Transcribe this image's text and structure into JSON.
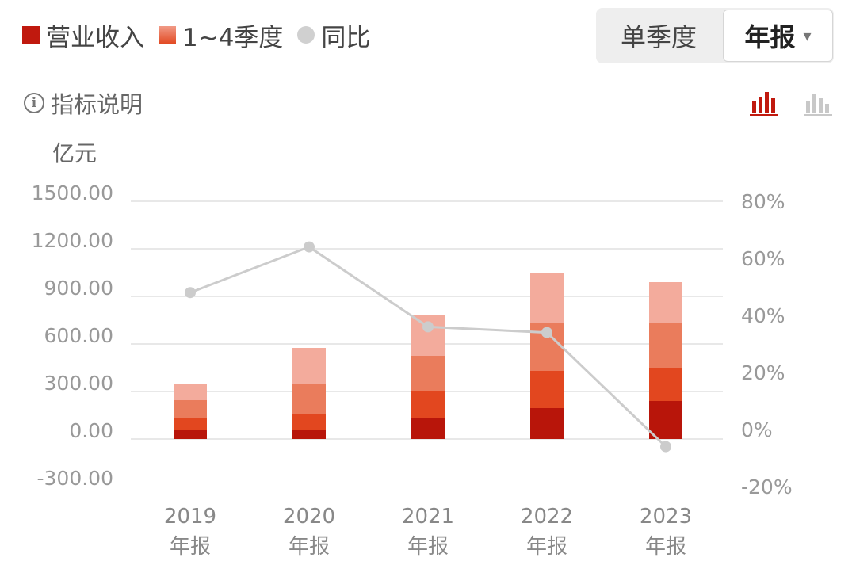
{
  "legend": {
    "revenue": "营业收入",
    "quarters": "1~4季度",
    "yoy": "同比"
  },
  "toggle": {
    "single_quarter": "单季度",
    "annual": "年报",
    "caret": "▾"
  },
  "help": {
    "icon_text": "i",
    "label": "指标说明"
  },
  "unit": "亿元",
  "colors": {
    "q1": "#b8150a",
    "q2": "#e2471f",
    "q3": "#ea7c5c",
    "q4": "#f3ab9c",
    "yoy_line": "#cccccc",
    "grid": "#e8e8e8",
    "active_icon": "#c0190e",
    "inactive_icon": "#c8c8c8"
  },
  "chart_data": {
    "type": "bar",
    "stacked": true,
    "categories": [
      "2019\n年报",
      "2020\n年报",
      "2021\n年报",
      "2022\n年报",
      "2023\n年报"
    ],
    "series": [
      {
        "name": "1~4季度",
        "quarter": 1,
        "values": [
          55,
          60,
          135,
          195,
          240
        ]
      },
      {
        "name": "1~4季度",
        "quarter": 2,
        "values": [
          80,
          95,
          165,
          235,
          210
        ]
      },
      {
        "name": "1~4季度",
        "quarter": 3,
        "values": [
          110,
          190,
          225,
          305,
          285
        ]
      },
      {
        "name": "1~4季度",
        "quarter": 4,
        "values": [
          105,
          230,
          255,
          310,
          255
        ]
      }
    ],
    "totals": [
      350,
      575,
      780,
      1045,
      990
    ],
    "yoy": {
      "name": "同比",
      "values": [
        48,
        64,
        36,
        34,
        -6
      ]
    },
    "ylabel": "亿元",
    "ylim": [
      -300,
      1500
    ],
    "yticks": [
      "-300.00",
      "0.00",
      "300.00",
      "600.00",
      "900.00",
      "1200.00",
      "1500.00"
    ],
    "y2lim": [
      -20,
      80
    ],
    "y2ticks": [
      "-20%",
      "0%",
      "20%",
      "40%",
      "60%",
      "80%"
    ],
    "grid": true,
    "legend_position": "top-left"
  }
}
